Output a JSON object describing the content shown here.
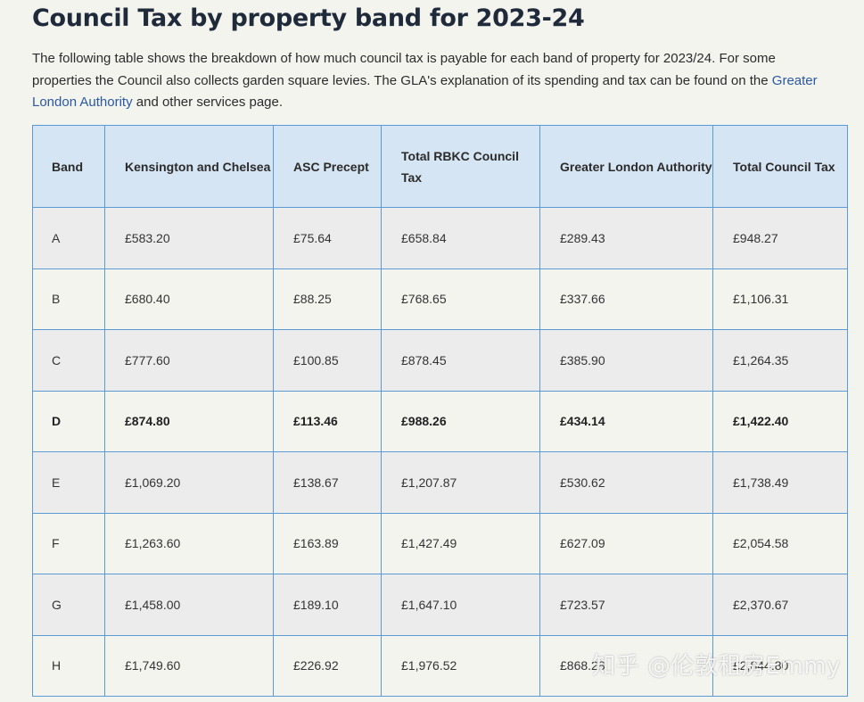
{
  "title": "Council Tax by property band for 2023-24",
  "intro": {
    "text_before_link": "The following table shows the breakdown of how much council tax is payable for each band of property for 2023/24. For some properties the Council also collects garden square levies. The GLA's explanation of its spending and tax can be found on the ",
    "link_text": "Greater London Authority",
    "text_after_link": " and other services page."
  },
  "table": {
    "headers": [
      "Band",
      "Kensington and Chelsea",
      "ASC Precept",
      "Total RBKC Council Tax",
      "Greater London Authority",
      "Total Council Tax"
    ],
    "rows": [
      [
        "A",
        "£583.20",
        "£75.64",
        "£658.84",
        "£289.43",
        "£948.27"
      ],
      [
        "B",
        "£680.40",
        "£88.25",
        "£768.65",
        "£337.66",
        "£1,106.31"
      ],
      [
        "C",
        "£777.60",
        "£100.85",
        "£878.45",
        "£385.90",
        "£1,264.35"
      ],
      [
        "D",
        "£874.80",
        "£113.46",
        "£988.26",
        "£434.14",
        "£1,422.40"
      ],
      [
        "E",
        "£1,069.20",
        "£138.67",
        "£1,207.87",
        "£530.62",
        "£1,738.49"
      ],
      [
        "F",
        "£1,263.60",
        "£163.89",
        "£1,427.49",
        "£627.09",
        "£2,054.58"
      ],
      [
        "G",
        "£1,458.00",
        "£189.10",
        "£1,647.10",
        "£723.57",
        "£2,370.67"
      ],
      [
        "H",
        "£1,749.60",
        "£226.92",
        "£1,976.52",
        "£868.28",
        "£2,844.80"
      ]
    ]
  },
  "watermark": "知乎 @伦敦租房Emmy",
  "colors": {
    "page_background": "#f4f4ef",
    "header_background": "#d6e5f3",
    "border": "#5b9bd5",
    "link": "#2a58a4",
    "title": "#1f2a3a"
  }
}
